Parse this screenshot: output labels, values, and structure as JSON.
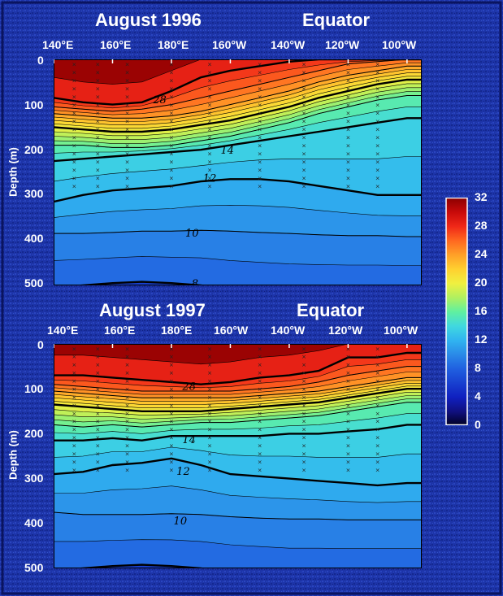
{
  "colors": {
    "background": "#1a2f9e",
    "text": "#ffffff",
    "contour": "#000000"
  },
  "colorbar": {
    "ticks": [
      "32",
      "28",
      "24",
      "20",
      "16",
      "12",
      "8",
      "4",
      "0"
    ],
    "stops": [
      "#8c0000",
      "#e02010",
      "#ff7020",
      "#ffd040",
      "#e0f040",
      "#50e090",
      "#30c0e8",
      "#2070e0",
      "#1020c0",
      "#000020"
    ]
  },
  "chart_data": [
    {
      "type": "heatmap",
      "title": "August 1996",
      "subtitle": "Equator",
      "xlabel": "",
      "ylabel": "Depth (m)",
      "x_ticks": [
        "140°E",
        "160°E",
        "180°E",
        "160°W",
        "140°W",
        "120°W",
        "100°W"
      ],
      "y_ticks": [
        "0",
        "100",
        "200",
        "300",
        "400",
        "500"
      ],
      "ylim": [
        0,
        500
      ],
      "clim": [
        0,
        32
      ],
      "x_lon": [
        140,
        150,
        160,
        170,
        180,
        190,
        200,
        210,
        220,
        230,
        240,
        250,
        260
      ],
      "isotherms": [
        {
          "label": "28",
          "depths": [
            85,
            95,
            100,
            95,
            70,
            40,
            25,
            15,
            5,
            0,
            0,
            0,
            0
          ]
        },
        {
          "label": "26",
          "depths": [
            105,
            110,
            115,
            110,
            100,
            85,
            70,
            55,
            40,
            25,
            10,
            5,
            0
          ]
        },
        {
          "label": "24",
          "depths": [
            120,
            125,
            130,
            130,
            125,
            115,
            100,
            85,
            70,
            50,
            35,
            25,
            15
          ]
        },
        {
          "label": "20",
          "depths": [
            150,
            155,
            160,
            160,
            155,
            145,
            135,
            120,
            105,
            85,
            70,
            55,
            45
          ]
        },
        {
          "label": "16",
          "depths": [
            190,
            190,
            195,
            195,
            190,
            180,
            170,
            155,
            140,
            120,
            105,
            90,
            80
          ]
        },
        {
          "label": "14",
          "depths": [
            225,
            220,
            215,
            210,
            205,
            200,
            190,
            180,
            170,
            160,
            150,
            140,
            130
          ]
        },
        {
          "label": "12",
          "depths": [
            315,
            300,
            290,
            285,
            280,
            270,
            265,
            265,
            270,
            280,
            290,
            300,
            300
          ]
        },
        {
          "label": "10",
          "depths": [
            385,
            385,
            383,
            380,
            380,
            378,
            380,
            383,
            385,
            388,
            390,
            390,
            392
          ]
        },
        {
          "label": "8",
          "depths": [
            505,
            500,
            495,
            492,
            495,
            500,
            510,
            515,
            520,
            520,
            520,
            520,
            520
          ]
        }
      ],
      "contour_labels": [
        {
          "text": "28",
          "lon": 176,
          "depth": 88
        },
        {
          "text": "14",
          "lon": 199,
          "depth": 200
        },
        {
          "text": "12",
          "lon": 193,
          "depth": 262
        },
        {
          "text": "10",
          "lon": 187,
          "depth": 383
        },
        {
          "text": "8",
          "lon": 188,
          "depth": 495
        }
      ]
    },
    {
      "type": "heatmap",
      "title": "August 1997",
      "subtitle": "Equator",
      "xlabel": "",
      "ylabel": "Depth (m)",
      "x_ticks": [
        "140°E",
        "160°E",
        "180°E",
        "160°W",
        "140°W",
        "120°W",
        "100°W"
      ],
      "y_ticks": [
        "0",
        "100",
        "200",
        "300",
        "400",
        "500"
      ],
      "ylim": [
        0,
        500
      ],
      "clim": [
        0,
        32
      ],
      "x_lon": [
        140,
        150,
        160,
        170,
        180,
        190,
        200,
        210,
        220,
        230,
        240,
        250,
        260
      ],
      "isotherms": [
        {
          "label": "28",
          "depths": [
            70,
            70,
            75,
            80,
            85,
            90,
            85,
            75,
            70,
            60,
            30,
            30,
            20
          ]
        },
        {
          "label": "26",
          "depths": [
            90,
            95,
            100,
            105,
            105,
            105,
            105,
            100,
            95,
            85,
            70,
            60,
            50
          ]
        },
        {
          "label": "24",
          "depths": [
            105,
            110,
            115,
            120,
            120,
            120,
            120,
            115,
            110,
            105,
            95,
            85,
            75
          ]
        },
        {
          "label": "20",
          "depths": [
            135,
            140,
            145,
            150,
            150,
            150,
            145,
            140,
            135,
            130,
            120,
            110,
            100
          ]
        },
        {
          "label": "16",
          "depths": [
            180,
            185,
            180,
            185,
            180,
            175,
            175,
            170,
            165,
            160,
            150,
            140,
            130
          ]
        },
        {
          "label": "14",
          "depths": [
            215,
            215,
            210,
            215,
            205,
            205,
            205,
            205,
            200,
            200,
            195,
            190,
            180
          ]
        },
        {
          "label": "12",
          "depths": [
            290,
            285,
            270,
            265,
            255,
            270,
            290,
            295,
            300,
            305,
            310,
            315,
            310
          ]
        },
        {
          "label": "10",
          "depths": [
            375,
            380,
            380,
            380,
            378,
            380,
            385,
            388,
            390,
            390,
            392,
            392,
            392
          ]
        },
        {
          "label": "8",
          "depths": [
            505,
            500,
            495,
            492,
            495,
            500,
            510,
            515,
            520,
            520,
            520,
            520,
            520
          ]
        }
      ],
      "contour_labels": [
        {
          "text": "28",
          "lon": 186,
          "depth": 93
        },
        {
          "text": "14",
          "lon": 186,
          "depth": 212
        },
        {
          "text": "12",
          "lon": 184,
          "depth": 283
        },
        {
          "text": "10",
          "lon": 183,
          "depth": 393
        }
      ]
    }
  ]
}
